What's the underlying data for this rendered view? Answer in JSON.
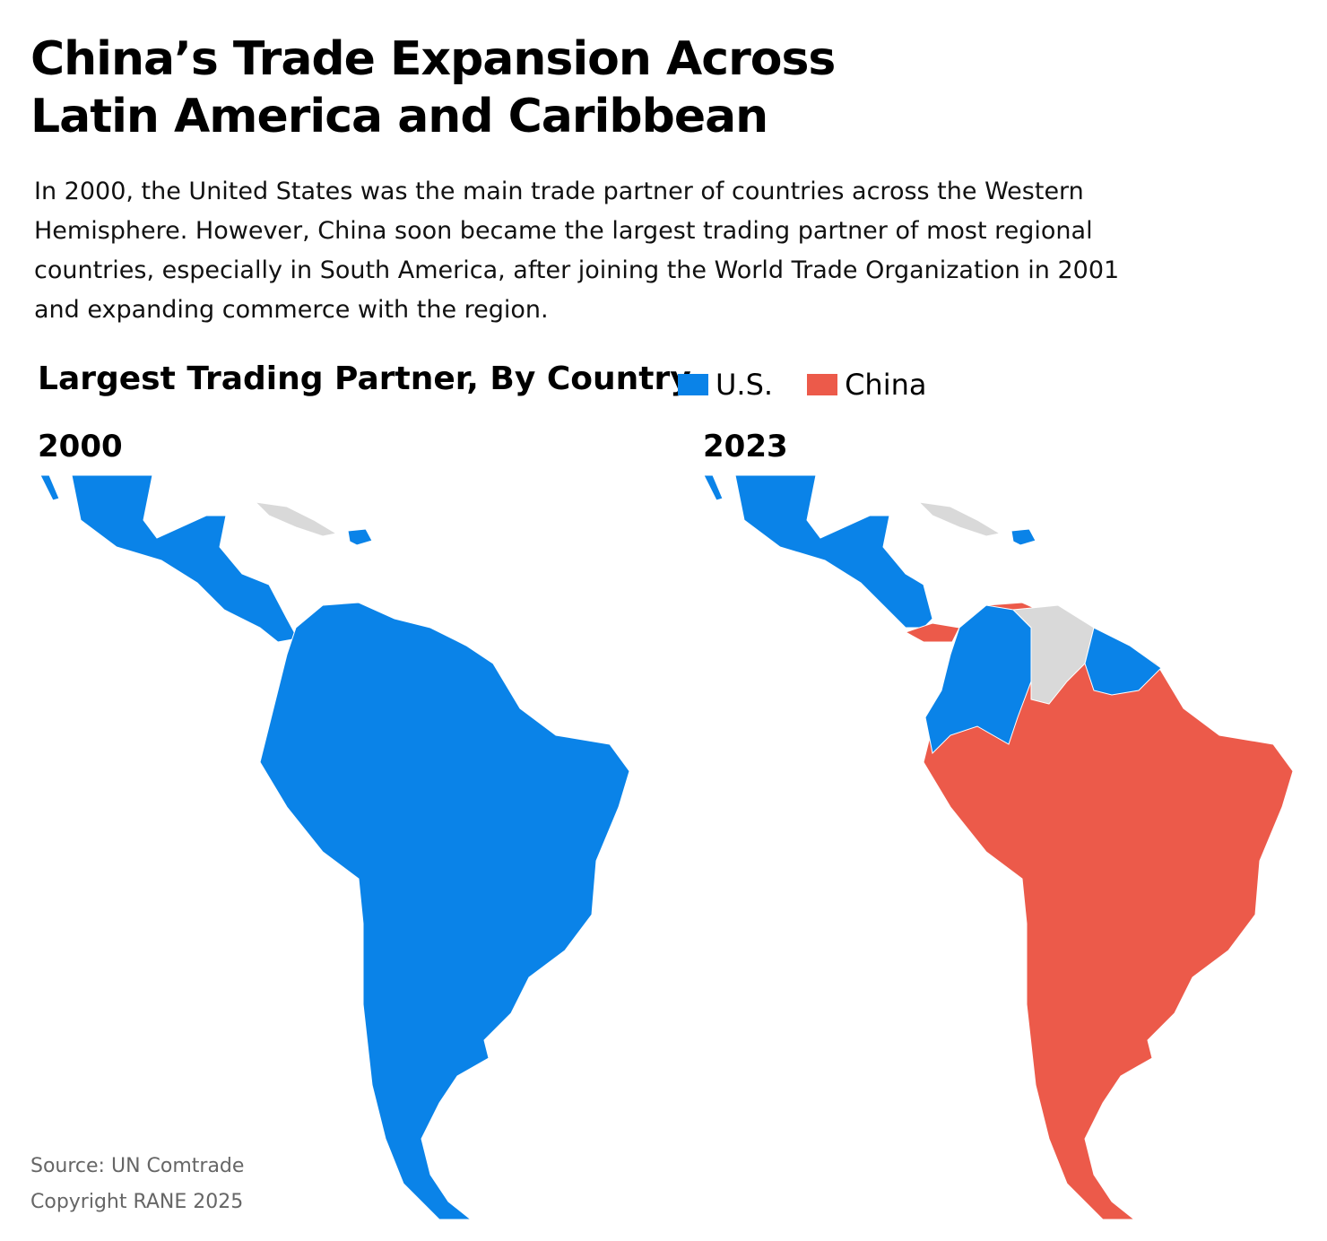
{
  "header": {
    "title_lines": [
      "China’s Trade Expansion Across",
      "Latin America and Caribbean"
    ],
    "description_lines": [
      "In 2000, the United States was the main trade partner of countries across the Western",
      "Hemisphere. However, China soon became the largest trading partner of most regional",
      "countries, especially in South America, after joining the World Trade Organization in 2001",
      "and expanding commerce with the region."
    ]
  },
  "map_title": "Largest Trading Partner, By Country",
  "legend": [
    {
      "label": "U.S.",
      "color": "#0a83e8"
    },
    {
      "label": "China",
      "color": "#ec5a4a"
    }
  ],
  "maps": [
    {
      "label": "2000"
    },
    {
      "label": "2023"
    }
  ],
  "footer": {
    "source": "Source: UN Comtrade",
    "copyright": "Copyright RANE 2025"
  }
}
